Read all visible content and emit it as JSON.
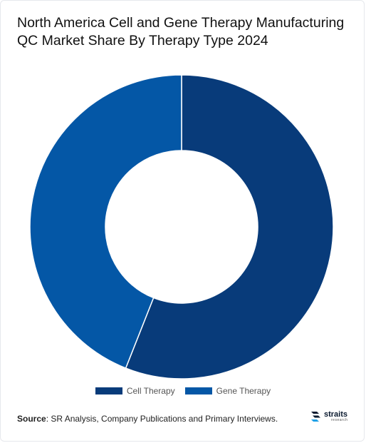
{
  "title": "North America Cell and Gene Therapy Manufacturing QC Market Share By Therapy Type 2024",
  "chart_data": {
    "type": "pie",
    "donut": true,
    "categories": [
      "Cell Therapy",
      "Gene Therapy"
    ],
    "values": [
      56,
      44
    ],
    "colors": [
      "#083b7a",
      "#0457a6"
    ],
    "legend_position": "bottom-center"
  },
  "source": {
    "label": "Source",
    "text": "SR Analysis, Company Publications and Primary Interviews."
  },
  "logo": {
    "word": "straits",
    "sub": "research"
  }
}
